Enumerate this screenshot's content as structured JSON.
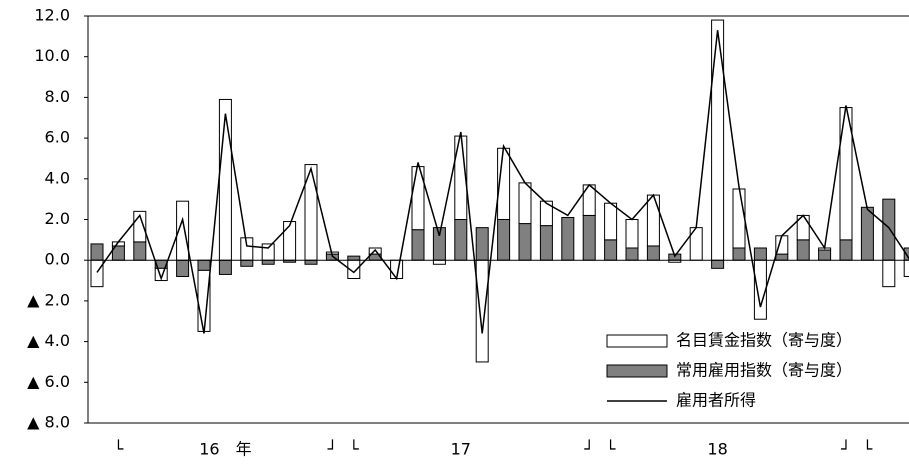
{
  "chart_data": {
    "type": "bar",
    "stacked": true,
    "categories": [
      null,
      "└",
      null,
      null,
      null,
      null,
      "16　年",
      null,
      null,
      null,
      null,
      "┘",
      "└",
      null,
      null,
      null,
      null,
      "17",
      null,
      null,
      null,
      null,
      null,
      "┘",
      "└",
      null,
      null,
      null,
      null,
      "18",
      null,
      null,
      null,
      null,
      null,
      "┘",
      "└",
      null,
      null
    ],
    "series": [
      {
        "name": "名目賃金指数（寄与度）",
        "type": "bar",
        "color": "#ffffff",
        "values": [
          -1.3,
          0.2,
          1.5,
          -0.6,
          2.9,
          -3.0,
          7.9,
          1.1,
          0.8,
          1.9,
          4.7,
          0.1,
          -0.9,
          0.3,
          -0.9,
          3.1,
          -0.2,
          4.1,
          -5.0,
          3.5,
          2.0,
          1.2,
          0.0,
          1.5,
          1.8,
          1.4,
          2.5,
          -0.1,
          1.6,
          11.8,
          2.9,
          -2.9,
          0.9,
          1.2,
          0.1,
          6.5,
          0.0,
          -1.3,
          -0.8
        ]
      },
      {
        "name": "常用雇用指数（寄与度）",
        "type": "bar",
        "color": "#808080",
        "values": [
          0.8,
          0.7,
          0.9,
          -0.4,
          -0.8,
          -0.5,
          -0.7,
          -0.3,
          -0.2,
          -0.1,
          -0.2,
          0.3,
          0.2,
          0.3,
          0.0,
          1.5,
          1.6,
          2.0,
          1.6,
          2.0,
          1.8,
          1.7,
          2.1,
          2.2,
          1.0,
          0.6,
          0.7,
          0.3,
          0.0,
          -0.4,
          0.6,
          0.6,
          0.3,
          1.0,
          0.5,
          1.0,
          2.6,
          3.0,
          0.6
        ]
      },
      {
        "name": "雇用者所得",
        "type": "line",
        "color": "#000000",
        "values": [
          -0.6,
          0.9,
          2.2,
          -0.9,
          2.0,
          -3.6,
          7.2,
          0.7,
          0.6,
          1.7,
          4.5,
          0.2,
          -0.6,
          0.5,
          -0.9,
          4.8,
          1.2,
          6.3,
          -3.6,
          5.6,
          3.8,
          2.8,
          2.2,
          3.7,
          2.8,
          2.0,
          3.2,
          0.2,
          1.6,
          11.3,
          3.6,
          -2.3,
          1.2,
          2.2,
          0.6,
          7.6,
          2.5,
          1.6,
          0.0
        ]
      }
    ],
    "ylim": [
      -8,
      12
    ],
    "yticks": [
      {
        "value": -8,
        "label": "▲ 8.0"
      },
      {
        "value": -6,
        "label": "▲ 6.0"
      },
      {
        "value": -4,
        "label": "▲ 4.0"
      },
      {
        "value": -2,
        "label": "▲ 2.0"
      },
      {
        "value": 0,
        "label": "0.0"
      },
      {
        "value": 2,
        "label": "2.0"
      },
      {
        "value": 4,
        "label": "4.0"
      },
      {
        "value": 6,
        "label": "6.0"
      },
      {
        "value": 8,
        "label": "8.0"
      },
      {
        "value": 10,
        "label": "10.0"
      },
      {
        "value": 12,
        "label": "12.0"
      }
    ],
    "grid": false,
    "legend": "lower right"
  }
}
